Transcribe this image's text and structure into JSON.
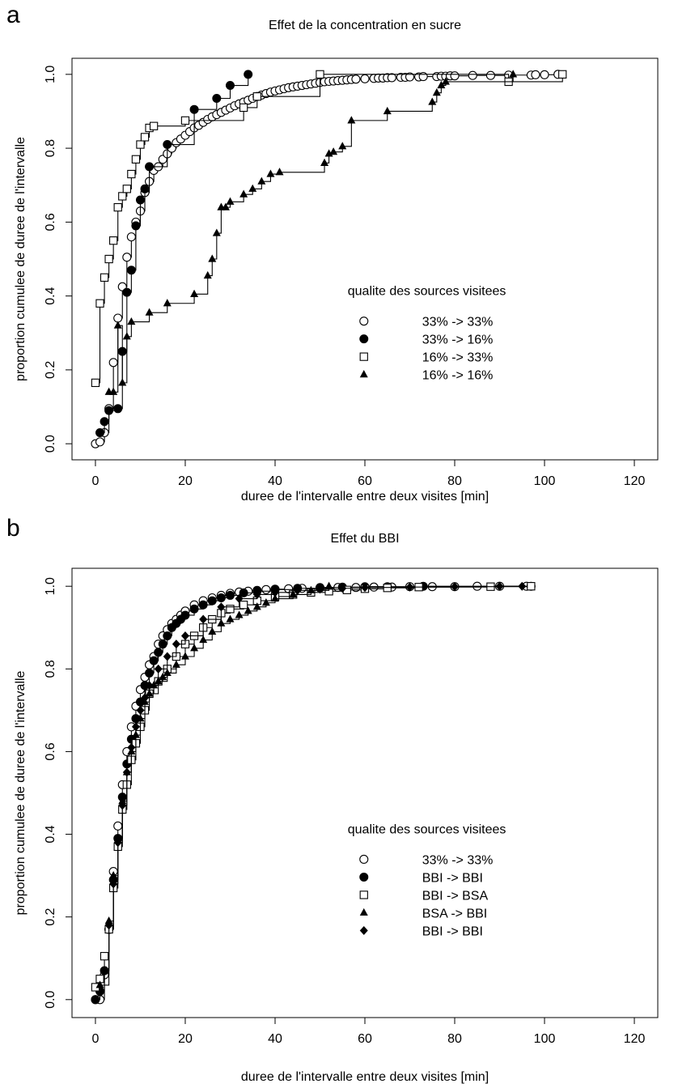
{
  "chart_data": [
    {
      "panel_letter": "a",
      "type": "line",
      "title": "Effet de la concentration en sucre",
      "xlabel": "duree de l'intervalle entre deux visites [min]",
      "ylabel": "proportion cumulee de duree de l'intervalle",
      "xlim": [
        0,
        120
      ],
      "ylim": [
        0,
        1
      ],
      "xticks": [
        "0",
        "20",
        "40",
        "60",
        "80",
        "100",
        "120"
      ],
      "yticks": [
        "0.0",
        "0.2",
        "0.4",
        "0.6",
        "0.8",
        "1.0"
      ],
      "grid": false,
      "legend_title": "qualite des sources visitees",
      "legend_position": "center-right",
      "series": [
        {
          "name": "33% -> 33%",
          "marker": "open-circle",
          "x": [
            0,
            1,
            2,
            3,
            4,
            5,
            6,
            7,
            8,
            9,
            10,
            11,
            12,
            13,
            14,
            15,
            16,
            17,
            18,
            19,
            20,
            21,
            22,
            23,
            24,
            25,
            26,
            27,
            28,
            29,
            30,
            31,
            32,
            33,
            34,
            35,
            36,
            37,
            38,
            39,
            40,
            41,
            42,
            43,
            44,
            45,
            46,
            47,
            48,
            49,
            50,
            51,
            52,
            53,
            54,
            55,
            56,
            57,
            58,
            60,
            62,
            63,
            64,
            65,
            66,
            68,
            69,
            70,
            72,
            73,
            76,
            77,
            78,
            79,
            80,
            84,
            88,
            92,
            97,
            98,
            100,
            103
          ],
          "y": [
            0.0,
            0.005,
            0.03,
            0.095,
            0.22,
            0.34,
            0.425,
            0.505,
            0.56,
            0.6,
            0.63,
            0.68,
            0.71,
            0.74,
            0.75,
            0.77,
            0.785,
            0.8,
            0.815,
            0.825,
            0.835,
            0.845,
            0.855,
            0.862,
            0.87,
            0.878,
            0.885,
            0.891,
            0.897,
            0.903,
            0.909,
            0.915,
            0.92,
            0.925,
            0.93,
            0.935,
            0.94,
            0.944,
            0.948,
            0.952,
            0.955,
            0.958,
            0.961,
            0.964,
            0.966,
            0.968,
            0.97,
            0.972,
            0.974,
            0.976,
            0.978,
            0.98,
            0.981,
            0.982,
            0.983,
            0.984,
            0.985,
            0.986,
            0.987,
            0.988,
            0.989,
            0.99,
            0.99,
            0.991,
            0.991,
            0.992,
            0.992,
            0.993,
            0.993,
            0.994,
            0.994,
            0.995,
            0.995,
            0.996,
            0.996,
            0.997,
            0.997,
            0.998,
            0.998,
            0.999,
            0.999,
            1.0
          ]
        },
        {
          "name": "33% -> 16%",
          "marker": "filled-circle",
          "x": [
            1,
            2,
            3,
            5,
            6,
            7,
            8,
            9,
            10,
            11,
            12,
            16,
            22,
            27,
            30,
            34
          ],
          "y": [
            0.03,
            0.06,
            0.09,
            0.095,
            0.25,
            0.41,
            0.47,
            0.59,
            0.66,
            0.69,
            0.75,
            0.81,
            0.905,
            0.935,
            0.97,
            1.0
          ]
        },
        {
          "name": "16% -> 33%",
          "marker": "open-square",
          "x": [
            0,
            1,
            2,
            3,
            4,
            5,
            6,
            7,
            8,
            9,
            10,
            11,
            12,
            13,
            20,
            33,
            36,
            50,
            92,
            104
          ],
          "y": [
            0.165,
            0.38,
            0.45,
            0.5,
            0.55,
            0.64,
            0.67,
            0.69,
            0.73,
            0.77,
            0.81,
            0.83,
            0.855,
            0.86,
            0.875,
            0.91,
            0.94,
            1.0,
            0.98,
            1.0
          ]
        },
        {
          "name": "16% -> 16%",
          "marker": "filled-triangle",
          "x": [
            3,
            4,
            5,
            6,
            7,
            8,
            12,
            16,
            22,
            25,
            26,
            27,
            28,
            29,
            30,
            33,
            35,
            37,
            39,
            41,
            51,
            52,
            53,
            55,
            57,
            65,
            75,
            76,
            77,
            78,
            93
          ],
          "y": [
            0.14,
            0.14,
            0.32,
            0.165,
            0.29,
            0.33,
            0.355,
            0.38,
            0.405,
            0.455,
            0.5,
            0.57,
            0.64,
            0.64,
            0.655,
            0.675,
            0.69,
            0.71,
            0.73,
            0.735,
            0.76,
            0.785,
            0.79,
            0.805,
            0.875,
            0.9,
            0.925,
            0.95,
            0.97,
            0.98,
            1.0
          ]
        }
      ]
    },
    {
      "panel_letter": "b",
      "type": "line",
      "title": "Effet du BBI",
      "xlabel": "duree de l'intervalle entre deux visites [min]",
      "ylabel": "proportion cumulee de duree de l'intervalle",
      "xlim": [
        0,
        120
      ],
      "ylim": [
        0,
        1
      ],
      "xticks": [
        "0",
        "20",
        "40",
        "60",
        "80",
        "100",
        "120"
      ],
      "yticks": [
        "0.0",
        "0.2",
        "0.4",
        "0.6",
        "0.8",
        "1.0"
      ],
      "grid": false,
      "legend_title": "qualite des sources visitees",
      "legend_position": "center-right",
      "series": [
        {
          "name": "33% -> 33%",
          "marker": "open-circle",
          "x": [
            0,
            1,
            2,
            3,
            4,
            5,
            6,
            7,
            8,
            9,
            10,
            11,
            12,
            13,
            14,
            15,
            16,
            17,
            18,
            19,
            20,
            22,
            24,
            26,
            28,
            30,
            32,
            34,
            36,
            38,
            40,
            43,
            46,
            50,
            54,
            58,
            62,
            66,
            70,
            75,
            80,
            85,
            90,
            96
          ],
          "y": [
            0.0,
            0.0,
            0.06,
            0.17,
            0.31,
            0.42,
            0.52,
            0.6,
            0.66,
            0.71,
            0.75,
            0.78,
            0.81,
            0.83,
            0.86,
            0.88,
            0.895,
            0.91,
            0.92,
            0.93,
            0.94,
            0.955,
            0.965,
            0.972,
            0.978,
            0.983,
            0.986,
            0.988,
            0.99,
            0.992,
            0.993,
            0.994,
            0.995,
            0.996,
            0.997,
            0.997,
            0.998,
            0.998,
            0.999,
            0.999,
            0.999,
            1.0,
            1.0,
            1.0
          ]
        },
        {
          "name": "BBI -> BBI",
          "marker": "filled-circle",
          "x": [
            0,
            1,
            2,
            3,
            4,
            5,
            6,
            7,
            8,
            9,
            10,
            11,
            12,
            13,
            14,
            15,
            16,
            17,
            18,
            19,
            20,
            22,
            24,
            26,
            28,
            30,
            33,
            36,
            40,
            45,
            50,
            55,
            60,
            65,
            73,
            97
          ],
          "y": [
            0.0,
            0.02,
            0.07,
            0.17,
            0.29,
            0.39,
            0.49,
            0.57,
            0.63,
            0.68,
            0.72,
            0.76,
            0.79,
            0.82,
            0.84,
            0.86,
            0.88,
            0.9,
            0.91,
            0.92,
            0.93,
            0.945,
            0.955,
            0.965,
            0.972,
            0.978,
            0.984,
            0.988,
            0.992,
            0.995,
            0.997,
            0.998,
            0.999,
            0.999,
            1.0,
            1.0
          ]
        },
        {
          "name": "BBI -> BSA",
          "marker": "open-square",
          "x": [
            0,
            1,
            2,
            3,
            4,
            5,
            6,
            7,
            8,
            9,
            10,
            11,
            12,
            14,
            16,
            18,
            20,
            22,
            24,
            26,
            28,
            30,
            33,
            36,
            40,
            44,
            48,
            52,
            56,
            60,
            65,
            72,
            88,
            97
          ],
          "y": [
            0.03,
            0.05,
            0.105,
            0.17,
            0.27,
            0.37,
            0.46,
            0.52,
            0.58,
            0.62,
            0.66,
            0.7,
            0.74,
            0.77,
            0.8,
            0.83,
            0.86,
            0.88,
            0.9,
            0.92,
            0.935,
            0.945,
            0.955,
            0.965,
            0.975,
            0.98,
            0.985,
            0.988,
            0.991,
            0.994,
            0.996,
            0.998,
            0.999,
            1.0
          ]
        },
        {
          "name": "BSA -> BBI",
          "marker": "filled-triangle",
          "x": [
            1,
            3,
            4,
            5,
            6,
            7,
            8,
            9,
            10,
            11,
            12,
            13,
            14,
            15,
            16,
            18,
            20,
            22,
            24,
            26,
            28,
            30,
            32,
            34,
            36,
            38,
            40,
            44,
            48,
            52
          ],
          "y": [
            0.035,
            0.19,
            0.3,
            0.39,
            0.48,
            0.55,
            0.6,
            0.64,
            0.68,
            0.72,
            0.74,
            0.76,
            0.77,
            0.78,
            0.79,
            0.81,
            0.83,
            0.85,
            0.87,
            0.89,
            0.91,
            0.92,
            0.93,
            0.94,
            0.95,
            0.96,
            0.97,
            0.98,
            0.99,
            1.0
          ]
        },
        {
          "name": "BBI -> BBI",
          "marker": "filled-diamond",
          "x": [
            2,
            3,
            4,
            5,
            6,
            7,
            8,
            9,
            10,
            11,
            12,
            14,
            16,
            18,
            20,
            24,
            28,
            32,
            36,
            40,
            45,
            50,
            55,
            60,
            70,
            80,
            90,
            95
          ],
          "y": [
            0.07,
            0.18,
            0.28,
            0.38,
            0.47,
            0.55,
            0.61,
            0.66,
            0.7,
            0.73,
            0.76,
            0.8,
            0.83,
            0.86,
            0.88,
            0.92,
            0.95,
            0.97,
            0.98,
            0.985,
            0.99,
            0.993,
            0.995,
            0.997,
            0.998,
            0.999,
            1.0,
            1.0
          ]
        }
      ]
    }
  ]
}
